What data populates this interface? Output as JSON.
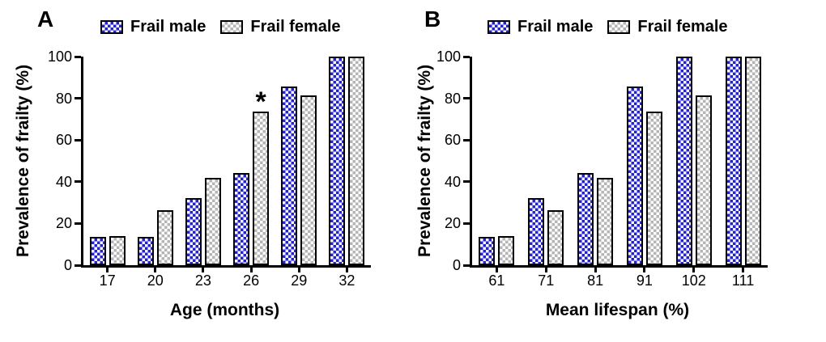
{
  "chart_data": [
    {
      "type": "bar",
      "panel": "A",
      "categories": [
        "17",
        "20",
        "23",
        "26",
        "29",
        "32"
      ],
      "xlabel": "Age (months)",
      "ylabel": "Prevalence of frailty (%)",
      "ylim": [
        0,
        100
      ],
      "yticks": [
        0,
        20,
        40,
        60,
        80,
        100
      ],
      "grid": false,
      "legend_position": "top",
      "bar_pattern": "checkerboard",
      "bar_border_color": "#000000",
      "series": [
        {
          "name": "Frail male",
          "color": "#1c1cff",
          "values": [
            13.5,
            13.5,
            32,
            44,
            85.5,
            100
          ]
        },
        {
          "name": "Frail female",
          "color": "#b5b5b5",
          "values": [
            14,
            26.5,
            42,
            73.5,
            81.5,
            100
          ]
        }
      ],
      "annotations": [
        {
          "text": "*",
          "series": "Frail female",
          "category": "26",
          "meaning": "significance-marker"
        }
      ]
    },
    {
      "type": "bar",
      "panel": "B",
      "categories": [
        "61",
        "71",
        "81",
        "91",
        "102",
        "111"
      ],
      "xlabel": "Mean lifespan (%)",
      "ylabel": "Prevalence of frailty (%)",
      "ylim": [
        0,
        100
      ],
      "yticks": [
        0,
        20,
        40,
        60,
        80,
        100
      ],
      "grid": false,
      "legend_position": "top",
      "bar_pattern": "checkerboard",
      "bar_border_color": "#000000",
      "series": [
        {
          "name": "Frail male",
          "color": "#1c1cff",
          "values": [
            13.5,
            32,
            44,
            85.5,
            100,
            100
          ]
        },
        {
          "name": "Frail female",
          "color": "#b5b5b5",
          "values": [
            14,
            26.5,
            42,
            73.5,
            81.5,
            100
          ]
        }
      ],
      "annotations": []
    }
  ]
}
